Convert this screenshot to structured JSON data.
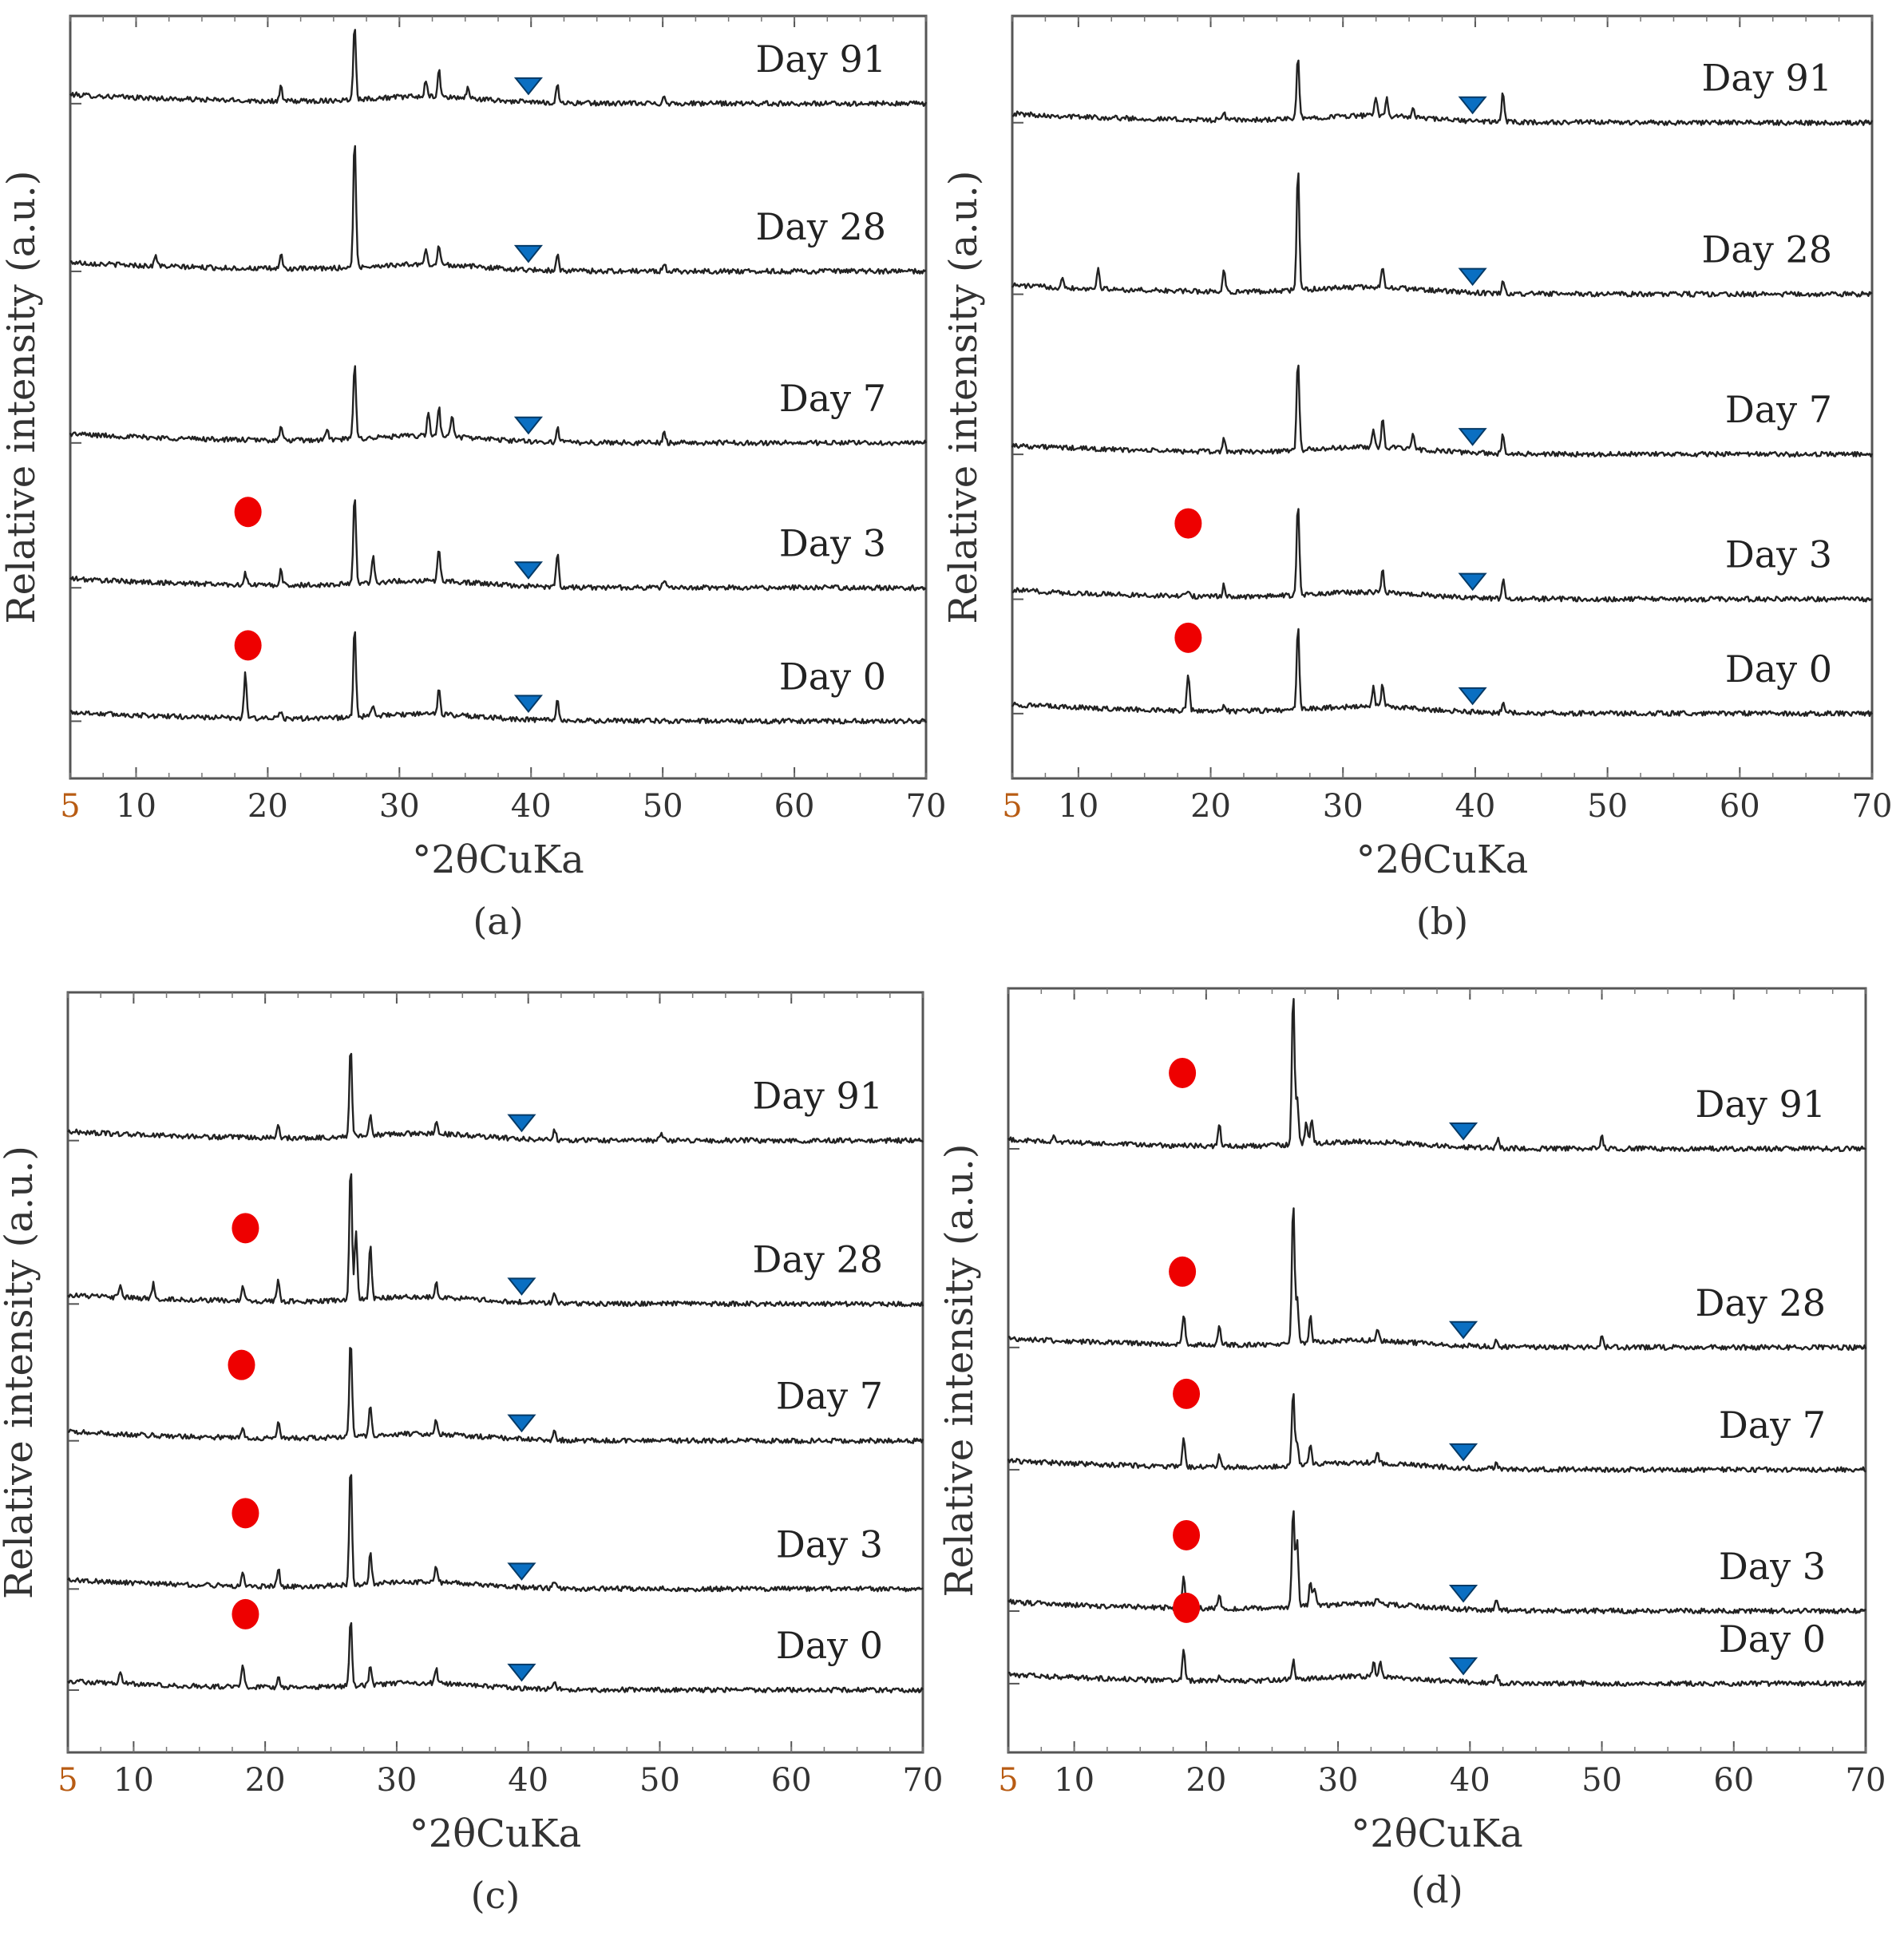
{
  "chart_data": [
    {
      "panel_label": "(a)",
      "type": "line",
      "xlabel": "°2θCuKa",
      "ylabel": "Relative intensity (a.u.)",
      "xlim": [
        5,
        70
      ],
      "xticks": [
        5,
        10,
        20,
        30,
        40,
        50,
        60,
        70
      ],
      "series": [
        {
          "name": "Day 91",
          "baseline": 0.885,
          "peaks": [
            [
              26.6,
              0.1
            ],
            [
              33.0,
              0.035
            ],
            [
              32.0,
              0.02
            ],
            [
              21.0,
              0.018
            ],
            [
              42.0,
              0.025
            ],
            [
              35.2,
              0.015
            ],
            [
              50.1,
              0.01
            ]
          ],
          "circle_at": null,
          "triangle_at": 39.8
        },
        {
          "name": "Day 28",
          "baseline": 0.665,
          "peaks": [
            [
              26.6,
              0.17
            ],
            [
              21.0,
              0.02
            ],
            [
              11.5,
              0.015
            ],
            [
              33.0,
              0.025
            ],
            [
              32.0,
              0.018
            ],
            [
              42.0,
              0.022
            ],
            [
              50.1,
              0.012
            ]
          ],
          "circle_at": null,
          "triangle_at": 39.8
        },
        {
          "name": "Day 7",
          "baseline": 0.44,
          "peaks": [
            [
              26.6,
              0.1
            ],
            [
              33.0,
              0.04
            ],
            [
              32.2,
              0.03
            ],
            [
              34.0,
              0.03
            ],
            [
              21.0,
              0.018
            ],
            [
              24.5,
              0.015
            ],
            [
              42.0,
              0.02
            ],
            [
              50.1,
              0.014
            ]
          ],
          "circle_at": null,
          "triangle_at": 39.8
        },
        {
          "name": "Day 3",
          "baseline": 0.25,
          "peaks": [
            [
              26.6,
              0.12
            ],
            [
              28.0,
              0.035
            ],
            [
              33.0,
              0.045
            ],
            [
              42.0,
              0.045
            ],
            [
              21.0,
              0.02
            ],
            [
              18.3,
              0.015
            ],
            [
              50.1,
              0.01
            ]
          ],
          "circle_at": 18.5,
          "triangle_at": 39.8
        },
        {
          "name": "Day 0",
          "baseline": 0.075,
          "peaks": [
            [
              26.6,
              0.12
            ],
            [
              18.3,
              0.06
            ],
            [
              33.0,
              0.035
            ],
            [
              42.0,
              0.025
            ],
            [
              21.0,
              0.01
            ],
            [
              28.0,
              0.015
            ]
          ],
          "circle_at": 18.5,
          "triangle_at": 39.8
        }
      ]
    },
    {
      "panel_label": "(b)",
      "type": "line",
      "xlabel": "°2θCuKa",
      "ylabel": "Relative intensity (a.u.)",
      "xlim": [
        5,
        70
      ],
      "xticks": [
        5,
        10,
        20,
        30,
        40,
        50,
        60,
        70
      ],
      "series": [
        {
          "name": "Day 91",
          "baseline": 0.86,
          "peaks": [
            [
              26.6,
              0.08
            ],
            [
              42.1,
              0.04
            ],
            [
              32.5,
              0.025
            ],
            [
              33.3,
              0.025
            ],
            [
              21.0,
              0.012
            ],
            [
              35.3,
              0.012
            ]
          ],
          "circle_at": null,
          "triangle_at": 39.8
        },
        {
          "name": "Day 28",
          "baseline": 0.635,
          "peaks": [
            [
              26.6,
              0.16
            ],
            [
              21.0,
              0.03
            ],
            [
              11.5,
              0.03
            ],
            [
              8.8,
              0.015
            ],
            [
              33.0,
              0.03
            ],
            [
              42.1,
              0.015
            ]
          ],
          "circle_at": null,
          "triangle_at": 39.8
        },
        {
          "name": "Day 7",
          "baseline": 0.425,
          "peaks": [
            [
              26.6,
              0.12
            ],
            [
              33.0,
              0.04
            ],
            [
              32.3,
              0.025
            ],
            [
              21.0,
              0.018
            ],
            [
              42.1,
              0.025
            ],
            [
              35.3,
              0.018
            ]
          ],
          "circle_at": null,
          "triangle_at": 39.8
        },
        {
          "name": "Day 3",
          "baseline": 0.235,
          "peaks": [
            [
              26.6,
              0.12
            ],
            [
              33.0,
              0.03
            ],
            [
              42.1,
              0.025
            ],
            [
              21.0,
              0.015
            ],
            [
              18.3,
              0.008
            ]
          ],
          "circle_at": 18.3,
          "triangle_at": 39.8
        },
        {
          "name": "Day 0",
          "baseline": 0.085,
          "peaks": [
            [
              26.6,
              0.11
            ],
            [
              18.3,
              0.05
            ],
            [
              33.0,
              0.03
            ],
            [
              32.3,
              0.025
            ],
            [
              42.1,
              0.015
            ],
            [
              21.0,
              0.01
            ]
          ],
          "circle_at": 18.3,
          "triangle_at": 39.8
        }
      ]
    },
    {
      "panel_label": "(c)",
      "type": "line",
      "xlabel": "°2θCuKa",
      "ylabel": "Relative intensity (a.u.)",
      "xlim": [
        5,
        70
      ],
      "xticks": [
        5,
        10,
        20,
        30,
        40,
        50,
        60,
        70
      ],
      "series": [
        {
          "name": "Day 91",
          "baseline": 0.805,
          "peaks": [
            [
              26.5,
              0.12
            ],
            [
              28.0,
              0.03
            ],
            [
              21.0,
              0.02
            ],
            [
              33.0,
              0.018
            ],
            [
              42.0,
              0.015
            ],
            [
              50.1,
              0.01
            ]
          ],
          "circle_at": null,
          "triangle_at": 39.5
        },
        {
          "name": "Day 28",
          "baseline": 0.59,
          "peaks": [
            [
              26.5,
              0.18
            ],
            [
              28.0,
              0.07
            ],
            [
              26.9,
              0.09
            ],
            [
              21.0,
              0.03
            ],
            [
              11.5,
              0.02
            ],
            [
              9.0,
              0.015
            ],
            [
              18.3,
              0.018
            ],
            [
              33.0,
              0.02
            ],
            [
              42.0,
              0.015
            ]
          ],
          "circle_at": 18.5,
          "triangle_at": 39.5
        },
        {
          "name": "Day 7",
          "baseline": 0.41,
          "peaks": [
            [
              26.5,
              0.13
            ],
            [
              28.0,
              0.04
            ],
            [
              33.0,
              0.02
            ],
            [
              21.0,
              0.02
            ],
            [
              18.3,
              0.012
            ],
            [
              42.0,
              0.015
            ]
          ],
          "circle_at": 18.2,
          "triangle_at": 39.5
        },
        {
          "name": "Day 3",
          "baseline": 0.215,
          "peaks": [
            [
              26.5,
              0.16
            ],
            [
              28.0,
              0.04
            ],
            [
              21.0,
              0.025
            ],
            [
              18.3,
              0.018
            ],
            [
              33.0,
              0.02
            ],
            [
              42.0,
              0.01
            ]
          ],
          "circle_at": 18.5,
          "triangle_at": 39.5
        },
        {
          "name": "Day 0",
          "baseline": 0.082,
          "peaks": [
            [
              26.5,
              0.09
            ],
            [
              28.0,
              0.025
            ],
            [
              18.3,
              0.03
            ],
            [
              21.0,
              0.015
            ],
            [
              9.0,
              0.015
            ],
            [
              33.0,
              0.02
            ],
            [
              42.0,
              0.012
            ]
          ],
          "circle_at": 18.5,
          "triangle_at": 39.5
        }
      ]
    },
    {
      "panel_label": "(d)",
      "type": "line",
      "xlabel": "°2θCuKa",
      "ylabel": "Relative intensity (a.u.)",
      "xlim": [
        5,
        70
      ],
      "xticks": [
        5,
        10,
        20,
        30,
        40,
        50,
        60,
        70
      ],
      "series": [
        {
          "name": "Day 91",
          "baseline": 0.79,
          "peaks": [
            [
              26.6,
              0.2
            ],
            [
              26.9,
              0.06
            ],
            [
              27.6,
              0.03
            ],
            [
              28.0,
              0.03
            ],
            [
              21.0,
              0.03
            ],
            [
              8.5,
              0.01
            ],
            [
              42.1,
              0.012
            ],
            [
              50.0,
              0.015
            ]
          ],
          "circle_at": 18.2,
          "triangle_at": 39.5
        },
        {
          "name": "Day 28",
          "baseline": 0.53,
          "peaks": [
            [
              26.6,
              0.19
            ],
            [
              26.9,
              0.06
            ],
            [
              27.9,
              0.035
            ],
            [
              18.3,
              0.04
            ],
            [
              21.0,
              0.025
            ],
            [
              33.0,
              0.015
            ],
            [
              42.0,
              0.01
            ],
            [
              50.0,
              0.015
            ]
          ],
          "circle_at": 18.2,
          "triangle_at": 39.5
        },
        {
          "name": "Day 7",
          "baseline": 0.37,
          "peaks": [
            [
              26.6,
              0.1
            ],
            [
              26.9,
              0.03
            ],
            [
              27.9,
              0.025
            ],
            [
              18.3,
              0.035
            ],
            [
              21.0,
              0.015
            ],
            [
              33.0,
              0.012
            ],
            [
              42.0,
              0.01
            ]
          ],
          "circle_at": 18.5,
          "triangle_at": 39.5
        },
        {
          "name": "Day 3",
          "baseline": 0.185,
          "peaks": [
            [
              26.6,
              0.13
            ],
            [
              26.9,
              0.09
            ],
            [
              27.9,
              0.03
            ],
            [
              28.2,
              0.025
            ],
            [
              18.3,
              0.04
            ],
            [
              21.0,
              0.02
            ],
            [
              42.0,
              0.015
            ],
            [
              33.0,
              0.01
            ]
          ],
          "circle_at": 18.5,
          "triangle_at": 39.5
        },
        {
          "name": "Day 0",
          "baseline": 0.09,
          "peaks": [
            [
              18.3,
              0.04
            ],
            [
              26.6,
              0.025
            ],
            [
              32.7,
              0.02
            ],
            [
              33.2,
              0.018
            ],
            [
              42.0,
              0.012
            ],
            [
              21.0,
              0.008
            ]
          ],
          "circle_at": 18.5,
          "triangle_at": 39.5
        }
      ]
    }
  ]
}
